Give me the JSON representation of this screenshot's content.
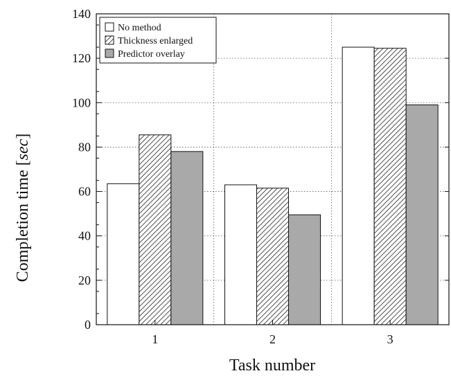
{
  "chart_data": {
    "type": "bar",
    "categories": [
      "1",
      "2",
      "3"
    ],
    "series": [
      {
        "name": "No method",
        "values": [
          63.5,
          63,
          125
        ],
        "style": "white"
      },
      {
        "name": "Thickness enlarged",
        "values": [
          85.5,
          61.5,
          124.5
        ],
        "style": "hatched"
      },
      {
        "name": "Predictor overlay",
        "values": [
          78,
          49.5,
          99
        ],
        "style": "gray"
      }
    ],
    "title": "",
    "xlabel": "Task number",
    "ylabel_prefix": "Completion time [",
    "ylabel_unit": "sec",
    "ylabel_suffix": "]",
    "ylim": [
      0,
      140
    ],
    "yticks": [
      0,
      20,
      40,
      60,
      80,
      100,
      120,
      140
    ],
    "grid": true,
    "legend_position": "top-left",
    "colors": {
      "white": "#ffffff",
      "gray": "#a9a9a9",
      "stroke": "#111111"
    }
  }
}
